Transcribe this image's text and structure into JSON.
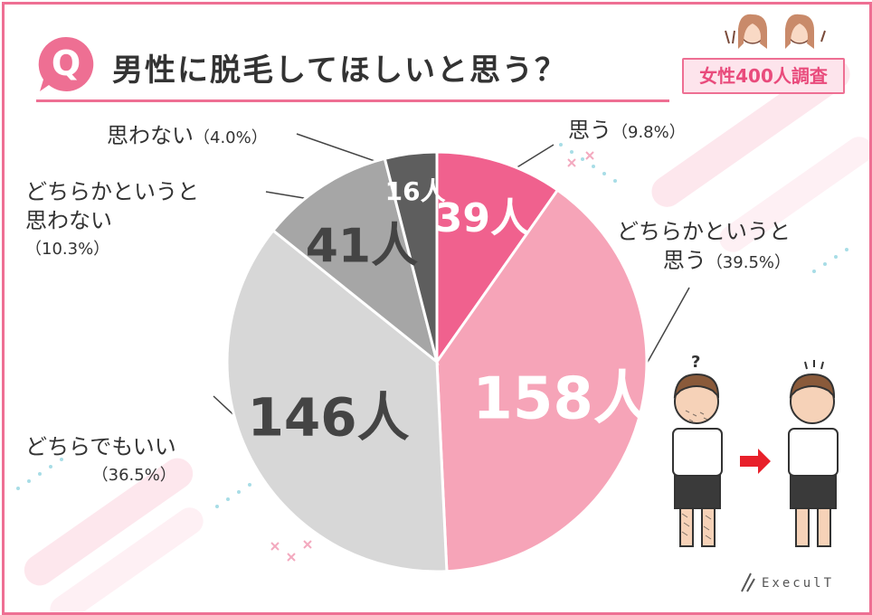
{
  "header": {
    "badge_letter": "Q",
    "question": "男性に脱毛してほしいと思う？",
    "survey_badge": "女性400人調査"
  },
  "chart_data": {
    "type": "pie",
    "title": "男性に脱毛してほしいと思う？",
    "total": 400,
    "unit": "人",
    "start_angle_deg": 0,
    "direction": "clockwise",
    "slices": [
      {
        "label": "思う",
        "count": 39,
        "percent": 9.8,
        "percent_text": "（9.8%）",
        "count_text": "39人",
        "color": "#f0618e"
      },
      {
        "label": "どちらかというと思う",
        "label_lines": [
          "どちらかというと",
          "思う"
        ],
        "count": 158,
        "percent": 39.5,
        "percent_text": "（39.5%）",
        "count_text": "158人",
        "color": "#f6a4b8"
      },
      {
        "label": "どちらでもいい",
        "count": 146,
        "percent": 36.5,
        "percent_text": "（36.5%）",
        "count_text": "146人",
        "color": "#d7d7d7"
      },
      {
        "label": "どちらかというと思わない",
        "label_lines": [
          "どちらかというと",
          "思わない"
        ],
        "count": 41,
        "percent": 10.3,
        "percent_text": "（10.3%）",
        "count_text": "41人",
        "color": "#a6a6a6"
      },
      {
        "label": "思わない",
        "count": 16,
        "percent": 4.0,
        "percent_text": "（4.0%）",
        "count_text": "16人",
        "color": "#5e5e5e"
      }
    ]
  },
  "illustrations": {
    "women_icon": "two-women-peace-sign",
    "men_icon": "man-before-after-hair-removal",
    "arrow_icon": "right-arrow",
    "question_mark": "?"
  },
  "logo": {
    "text": "ExeculT"
  },
  "theme": {
    "accent": "#ee6f93",
    "accent_light": "#fde4ec",
    "dots": "#a8dde6"
  }
}
